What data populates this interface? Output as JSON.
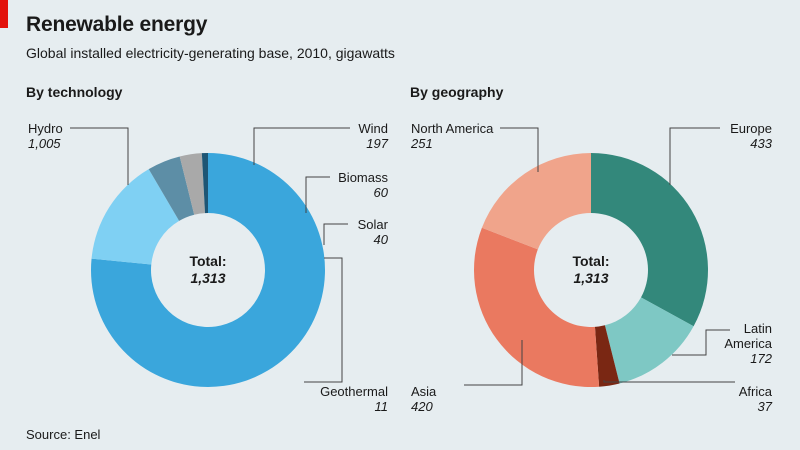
{
  "header": {
    "title": "Renewable energy",
    "subtitle": "Global installed electricity-generating base, 2010, gigawatts"
  },
  "source": "Source: Enel",
  "colors": {
    "accent_tag": "#e3120b",
    "background": "#e6edf0"
  },
  "chart_data": [
    {
      "type": "pie",
      "title": "By technology",
      "center_label": "Total:",
      "center_value": "1,313",
      "categories": [
        "Hydro",
        "Wind",
        "Biomass",
        "Solar",
        "Geothermal"
      ],
      "values": [
        1005,
        197,
        60,
        40,
        11
      ],
      "value_labels": [
        "1,005",
        "197",
        "60",
        "40",
        "11"
      ],
      "colors": [
        "#3aa6dc",
        "#7fd0f3",
        "#5d8ea6",
        "#a9a9a9",
        "#1d5574"
      ]
    },
    {
      "type": "pie",
      "title": "By geography",
      "center_label": "Total:",
      "center_value": "1,313",
      "categories": [
        "Europe",
        "Latin America",
        "Africa",
        "Asia",
        "North America"
      ],
      "values": [
        433,
        172,
        37,
        420,
        251
      ],
      "value_labels": [
        "433",
        "172",
        "37",
        "420",
        "251"
      ],
      "label_lines": [
        [
          "Europe"
        ],
        [
          "Latin",
          "America"
        ],
        [
          "Africa"
        ],
        [
          "Asia"
        ],
        [
          "North America"
        ]
      ],
      "colors": [
        "#33887b",
        "#7ec8c4",
        "#7a2713",
        "#ea7960",
        "#f0a48b"
      ]
    }
  ]
}
